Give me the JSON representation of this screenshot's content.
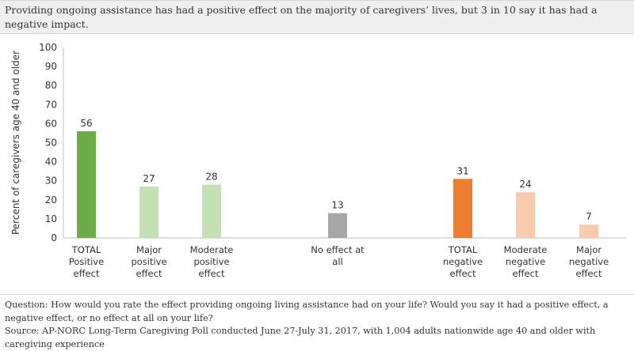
{
  "title": "Providing ongoing assistance has had a positive effect on the majority of caregivers’ lives, but 3 in 10 say it has had a negative impact.",
  "question": "Question: How would you rate the effect providing ongoing living assistance had on your life? Would you say it had a positive effect, a negative effect, or no effect at all on your life?",
  "source": "Source: AP-NORC Long-Term Caregiving Poll conducted June 27-July 31, 2017, with 1,004 adults nationwide age 40 and older with caregiving experience",
  "chart_data": {
    "type": "bar",
    "ylabel": "Percent of caregivers age 40 and older",
    "xlabel": "",
    "ylim": [
      0,
      100
    ],
    "yticks": [
      0,
      10,
      20,
      30,
      40,
      50,
      60,
      70,
      80,
      90,
      100
    ],
    "grid": false,
    "categories": [
      [
        "TOTAL",
        "Positive",
        "effect"
      ],
      [
        "Major",
        "positive",
        "effect"
      ],
      [
        "Moderate",
        "positive",
        "effect"
      ],
      [
        "No effect at",
        "all"
      ],
      [
        "TOTAL",
        "negative",
        "effect"
      ],
      [
        "Moderate",
        "negative",
        "effect"
      ],
      [
        "Major",
        "negative",
        "effect"
      ]
    ],
    "values": [
      56,
      27,
      28,
      13,
      31,
      24,
      7
    ],
    "colors": [
      "#6aae45",
      "#c5e0b4",
      "#c5e0b4",
      "#a6a6a6",
      "#ed7d31",
      "#f8cbad",
      "#f8cbad"
    ]
  }
}
